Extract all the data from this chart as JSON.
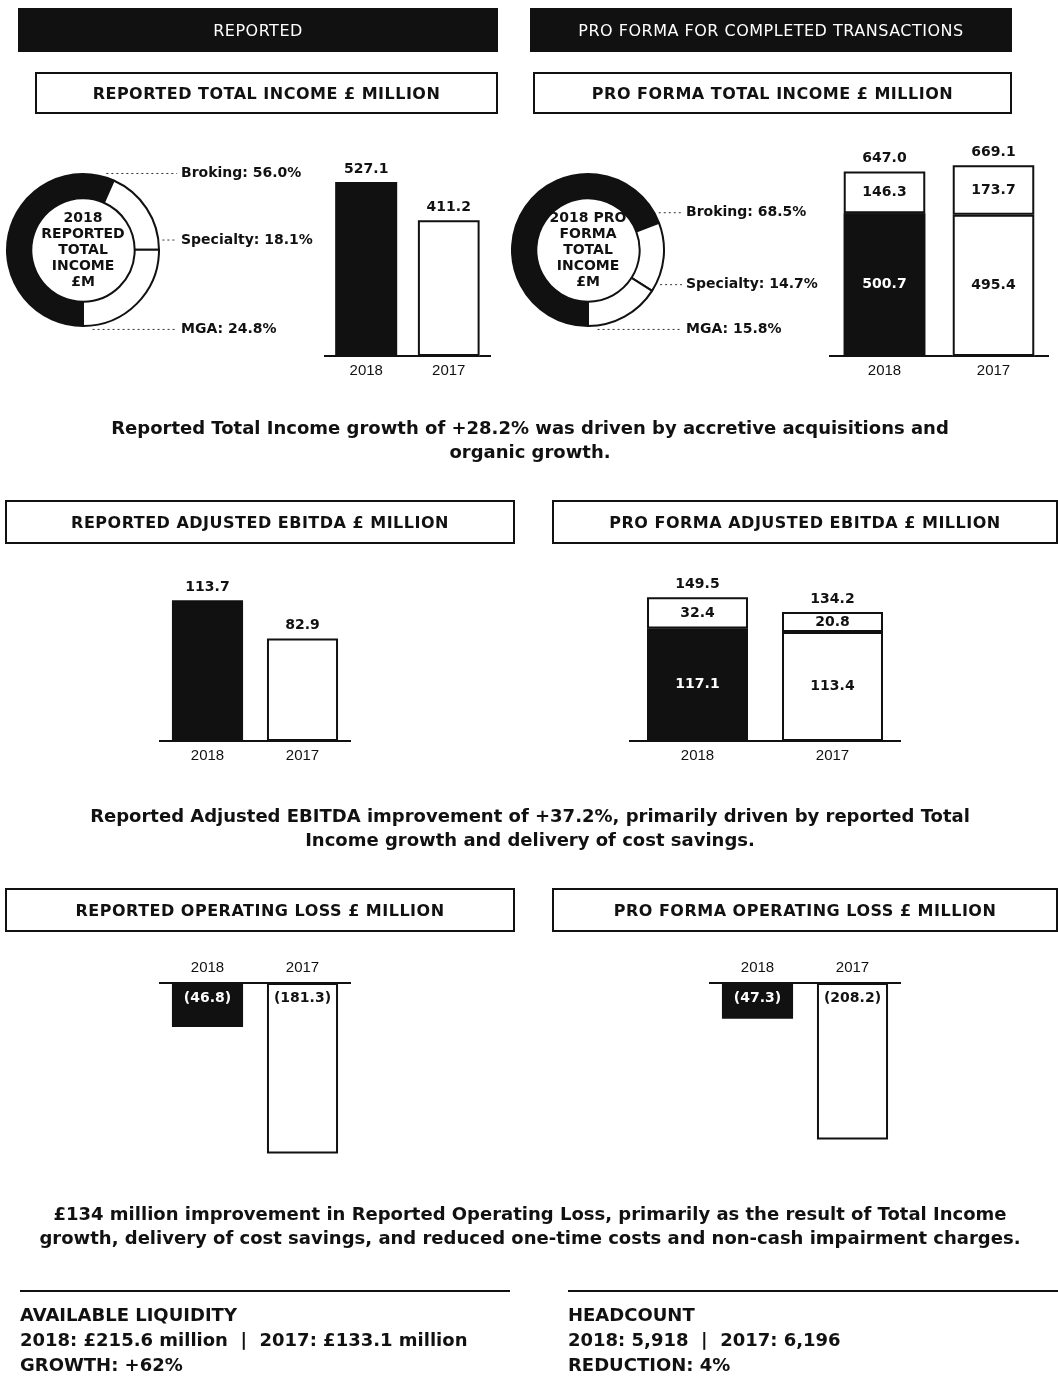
{
  "chart_data": [
    {
      "type": "donut",
      "title": "REPORTED TOTAL INCOME £ MILLION",
      "annotations": [
        "REPORTED",
        "2018 REPORTED TOTAL INCOME £M"
      ],
      "categories": [
        "Broking",
        "Specialty",
        "MGA"
      ],
      "values": [
        56.0,
        18.1,
        24.8
      ],
      "value_labels": [
        "56.0%",
        "18.1%",
        "24.8%"
      ],
      "colors": [
        "#111111",
        "#ffffff",
        "#ffffff"
      ]
    },
    {
      "type": "bar",
      "categories": [
        "2018",
        "2017"
      ],
      "values": [
        527.1,
        411.2
      ],
      "colors": [
        "#111111",
        "#ffffff"
      ],
      "data_labels": true,
      "annotations": [
        "Reported Total Income growth of +28.2% was driven by accretive acquisitions and organic growth."
      ]
    },
    {
      "type": "donut",
      "title": "PRO FORMA TOTAL INCOME £ MILLION",
      "annotations": [
        "PRO FORMA FOR COMPLETED TRANSACTIONS",
        "2018 PRO FORMA TOTAL INCOME £M"
      ],
      "categories": [
        "Broking",
        "Specialty",
        "MGA"
      ],
      "values": [
        68.5,
        14.7,
        15.8
      ],
      "value_labels": [
        "68.5%",
        "14.7%",
        "15.8%"
      ],
      "colors": [
        "#111111",
        "#ffffff",
        "#ffffff"
      ]
    },
    {
      "type": "bar",
      "categories": [
        "2018",
        "2017"
      ],
      "stacked": true,
      "data_labels": true,
      "totals": [
        "647.0",
        "669.1"
      ],
      "series": [
        {
          "colors": [
            "#111111",
            "#ffffff"
          ],
          "values": [
            500.7,
            495.4
          ]
        },
        {
          "colors": [
            "#ffffff",
            "#ffffff"
          ],
          "values": [
            146.3,
            173.7
          ]
        }
      ]
    },
    {
      "type": "bar",
      "title": "REPORTED ADJUSTED EBITDA £ MILLION",
      "categories": [
        "2018",
        "2017"
      ],
      "values": [
        113.7,
        82.9
      ],
      "colors": [
        "#111111",
        "#ffffff"
      ],
      "data_labels": true,
      "annotations": [
        "Reported Adjusted EBITDA improvement of +37.2%, primarily driven by reported Total Income growth and delivery of cost savings."
      ]
    },
    {
      "type": "bar",
      "title": "PRO FORMA ADJUSTED EBITDA £ MILLION",
      "categories": [
        "2018",
        "2017"
      ],
      "stacked": true,
      "data_labels": true,
      "totals": [
        "149.5",
        "134.2"
      ],
      "series": [
        {
          "colors": [
            "#111111",
            "#ffffff"
          ],
          "values": [
            117.1,
            113.4
          ]
        },
        {
          "colors": [
            "#ffffff",
            "#ffffff"
          ],
          "values": [
            32.4,
            20.8
          ]
        }
      ]
    },
    {
      "type": "bar",
      "title": "REPORTED OPERATING LOSS £ MILLION",
      "categories": [
        "2018",
        "2017"
      ],
      "values": [
        -46.8,
        -181.3
      ],
      "value_labels": [
        "(46.8)",
        "(181.3)"
      ],
      "colors": [
        "#111111",
        "#ffffff"
      ],
      "annotations": [
        "£134 million improvement in Reported Operating Loss, primarily as the result of Total Income growth, delivery of cost savings, and reduced one-time costs and non-cash impairment charges."
      ]
    },
    {
      "type": "bar",
      "title": "PRO FORMA OPERATING LOSS £ MILLION",
      "categories": [
        "2018",
        "2017"
      ],
      "values": [
        -47.3,
        -208.2
      ],
      "value_labels": [
        "(47.3)",
        "(208.2)"
      ],
      "colors": [
        "#111111",
        "#ffffff"
      ]
    },
    {
      "type": "other",
      "title": "AVAILABLE LIQUIDITY",
      "annotations": [
        "2018: £215.6 million  |  2017: £133.1 million",
        "GROWTH: +62%"
      ]
    },
    {
      "type": "other",
      "title": "HEADCOUNT",
      "annotations": [
        "2018: 5,918  |  2017: 6,196",
        "REDUCTION: 4%"
      ]
    }
  ]
}
